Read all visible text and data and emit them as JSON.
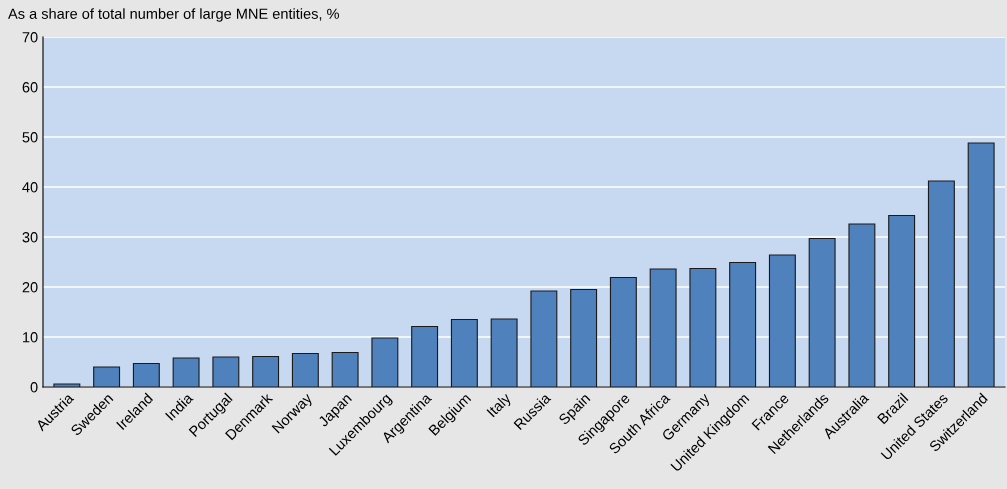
{
  "chart_data": {
    "type": "bar",
    "ylabel": "As a share of total number of large MNE entities, %",
    "categories": [
      "Austria",
      "Sweden",
      "Ireland",
      "India",
      "Portugal",
      "Denmark",
      "Norway",
      "Japan",
      "Luxembourg",
      "Argentina",
      "Belgium",
      "Italy",
      "Russia",
      "Spain",
      "Singapore",
      "South Africa",
      "Germany",
      "United Kingdom",
      "France",
      "Netherlands",
      "Australia",
      "Brazil",
      "United States",
      "Switzerland"
    ],
    "values": [
      0.6,
      4.0,
      4.7,
      5.8,
      6.0,
      6.1,
      6.7,
      6.9,
      9.8,
      12.1,
      13.5,
      13.6,
      19.2,
      19.5,
      21.9,
      23.6,
      23.7,
      24.9,
      26.4,
      29.7,
      32.6,
      34.3,
      41.2,
      48.8
    ],
    "color": "#4f81bd",
    "ylim": [
      0,
      70
    ],
    "yticks": [
      0,
      10,
      20,
      30,
      40,
      50,
      60,
      70
    ],
    "grid": "y",
    "legend": false
  }
}
